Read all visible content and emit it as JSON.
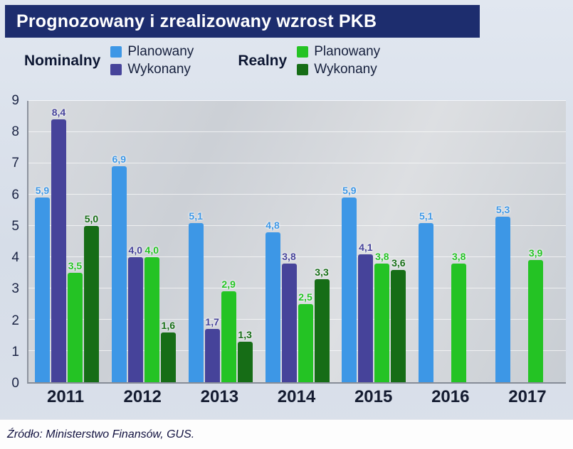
{
  "title": "Prognozowany i zrealizowany wzrost PKB",
  "source": "Źródło: Ministerstwo Finansów, GUS.",
  "colors": {
    "titlebar_bg": "#1d2d6e",
    "nominal_plan": "#3d97e6",
    "nominal_done": "#46439a",
    "real_plan": "#24c324",
    "real_done": "#166d16"
  },
  "legend": {
    "groups": [
      {
        "label": "Nominalny",
        "items": [
          {
            "label": "Planowany",
            "color": "#3d97e6"
          },
          {
            "label": "Wykonany",
            "color": "#46439a"
          }
        ]
      },
      {
        "label": "Realny",
        "items": [
          {
            "label": "Planowany",
            "color": "#24c324"
          },
          {
            "label": "Wykonany",
            "color": "#166d16"
          }
        ]
      }
    ]
  },
  "chart_data": {
    "type": "bar",
    "title": "Prognozowany i zrealizowany wzrost PKB",
    "categories": [
      "2011",
      "2012",
      "2013",
      "2014",
      "2015",
      "2016",
      "2017"
    ],
    "series": [
      {
        "name": "Nominalny Planowany",
        "color": "#3d97e6",
        "values": [
          5.9,
          6.9,
          5.1,
          4.8,
          5.9,
          5.1,
          5.3
        ]
      },
      {
        "name": "Nominalny Wykonany",
        "color": "#46439a",
        "values": [
          8.4,
          4.0,
          1.7,
          3.8,
          4.1,
          null,
          null
        ]
      },
      {
        "name": "Realny Planowany",
        "color": "#24c324",
        "values": [
          3.5,
          4.0,
          2.9,
          2.5,
          3.8,
          3.8,
          3.9
        ]
      },
      {
        "name": "Realny Wykonany",
        "color": "#166d16",
        "values": [
          5.0,
          1.6,
          1.3,
          3.3,
          3.6,
          null,
          null
        ]
      }
    ],
    "xlabel": "",
    "ylabel": "",
    "ylim": [
      0,
      9
    ],
    "yticks": [
      0,
      1,
      2,
      3,
      4,
      5,
      6,
      7,
      8,
      9
    ],
    "grid": true,
    "value_labels": true,
    "decimal_separator": ",",
    "legend_position": "top"
  }
}
